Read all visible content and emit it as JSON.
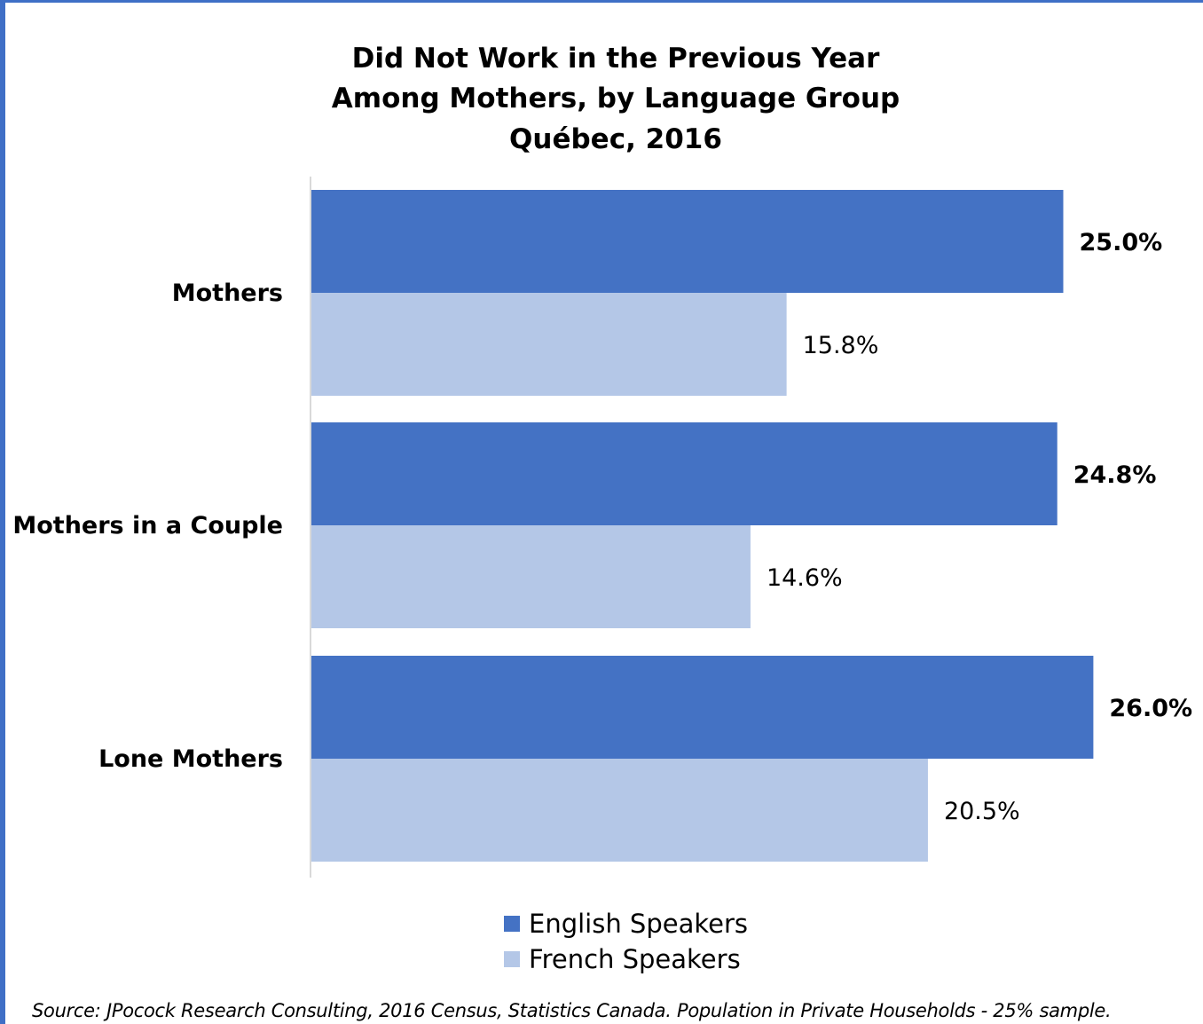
{
  "chart_data": {
    "type": "bar",
    "orientation": "horizontal",
    "title_lines": [
      "Did Not Work in the Previous Year",
      "Among Mothers, by Language Group",
      "Québec, 2016"
    ],
    "categories": [
      "Mothers",
      "Mothers in a Couple",
      "Lone Mothers"
    ],
    "series": [
      {
        "name": "English Speakers",
        "values": [
          25.0,
          24.8,
          26.0
        ],
        "labels": [
          "25.0%",
          "24.8%",
          "26.0%"
        ],
        "color": "#4472c4"
      },
      {
        "name": "French Speakers",
        "values": [
          15.8,
          14.6,
          20.5
        ],
        "labels": [
          "15.8%",
          "14.6%",
          "20.5%"
        ],
        "color": "#b4c7e7"
      }
    ],
    "xlim": [
      0,
      28
    ],
    "legend_position": "bottom",
    "grid": false
  },
  "source": "Source: JPocock Research Consulting, 2016 Census, Statistics Canada. Population in Private Households - 25% sample.",
  "colors": {
    "frame": "#3f6fc6",
    "axis": "#d9d9d9"
  }
}
